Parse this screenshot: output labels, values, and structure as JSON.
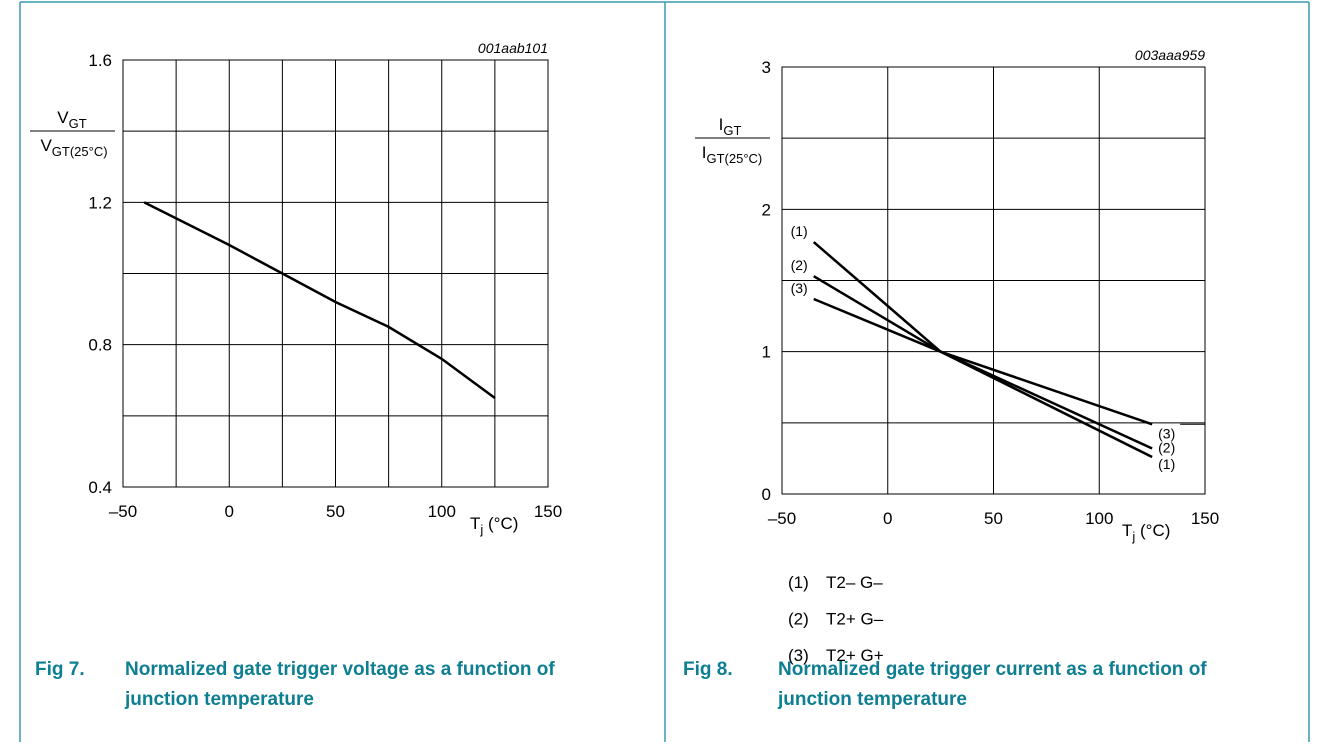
{
  "chart_data": [
    {
      "type": "line",
      "figure": "Fig 7.",
      "caption": [
        "Normalized gate trigger voltage as a function of",
        "junction temperature"
      ],
      "code": "001aab101",
      "ylabel": {
        "numerator": "V",
        "numerator_sub": "GT",
        "denominator": "V",
        "denominator_sub": "GT(25°C)"
      },
      "xlabel": {
        "main": "T",
        "sub": "j",
        "unit": " (°C)"
      },
      "xlim": [
        -50,
        150
      ],
      "ylim": [
        0.4,
        1.6
      ],
      "xticks": [
        {
          "value": -50,
          "label": "–50"
        },
        0,
        50,
        100,
        150
      ],
      "yticks": [
        0.4,
        0.8,
        1.2,
        1.6
      ],
      "grid": true,
      "minor_xgrid": true,
      "minor_ygrid": true,
      "color": "#000000",
      "series": [
        {
          "x": [
            -40,
            0,
            25,
            50,
            75,
            100,
            125
          ],
          "values": [
            1.2,
            1.08,
            1.0,
            0.92,
            0.85,
            0.76,
            0.65
          ]
        }
      ]
    },
    {
      "type": "line",
      "figure": "Fig 8.",
      "caption": [
        "Normalized gate trigger current as a function of",
        "junction temperature"
      ],
      "code": "003aaa959",
      "ylabel": {
        "numerator": "I",
        "numerator_sub": "GT",
        "denominator": "I",
        "denominator_sub": "GT(25°C)"
      },
      "xlabel": {
        "main": "T",
        "sub": "j",
        "unit": " (°C)"
      },
      "xlim": [
        -50,
        150
      ],
      "ylim": [
        0,
        3
      ],
      "xticks": [
        {
          "value": -50,
          "label": "–50"
        },
        0,
        50,
        100,
        150
      ],
      "yticks": [
        0,
        1,
        2,
        3
      ],
      "grid": true,
      "minor_xgrid": false,
      "minor_ygrid": true,
      "color": "#000000",
      "series": [
        {
          "label": "(1)",
          "name": "T2– G–",
          "x": [
            -35,
            25,
            125
          ],
          "values": [
            1.77,
            1.0,
            0.26
          ]
        },
        {
          "label": "(2)",
          "name": "T2+ G–",
          "x": [
            -35,
            25,
            125
          ],
          "values": [
            1.53,
            1.0,
            0.32
          ]
        },
        {
          "label": "(3)",
          "name": "T2+ G+",
          "x": [
            -35,
            25,
            125
          ],
          "values": [
            1.37,
            1.0,
            0.49
          ]
        }
      ]
    }
  ]
}
